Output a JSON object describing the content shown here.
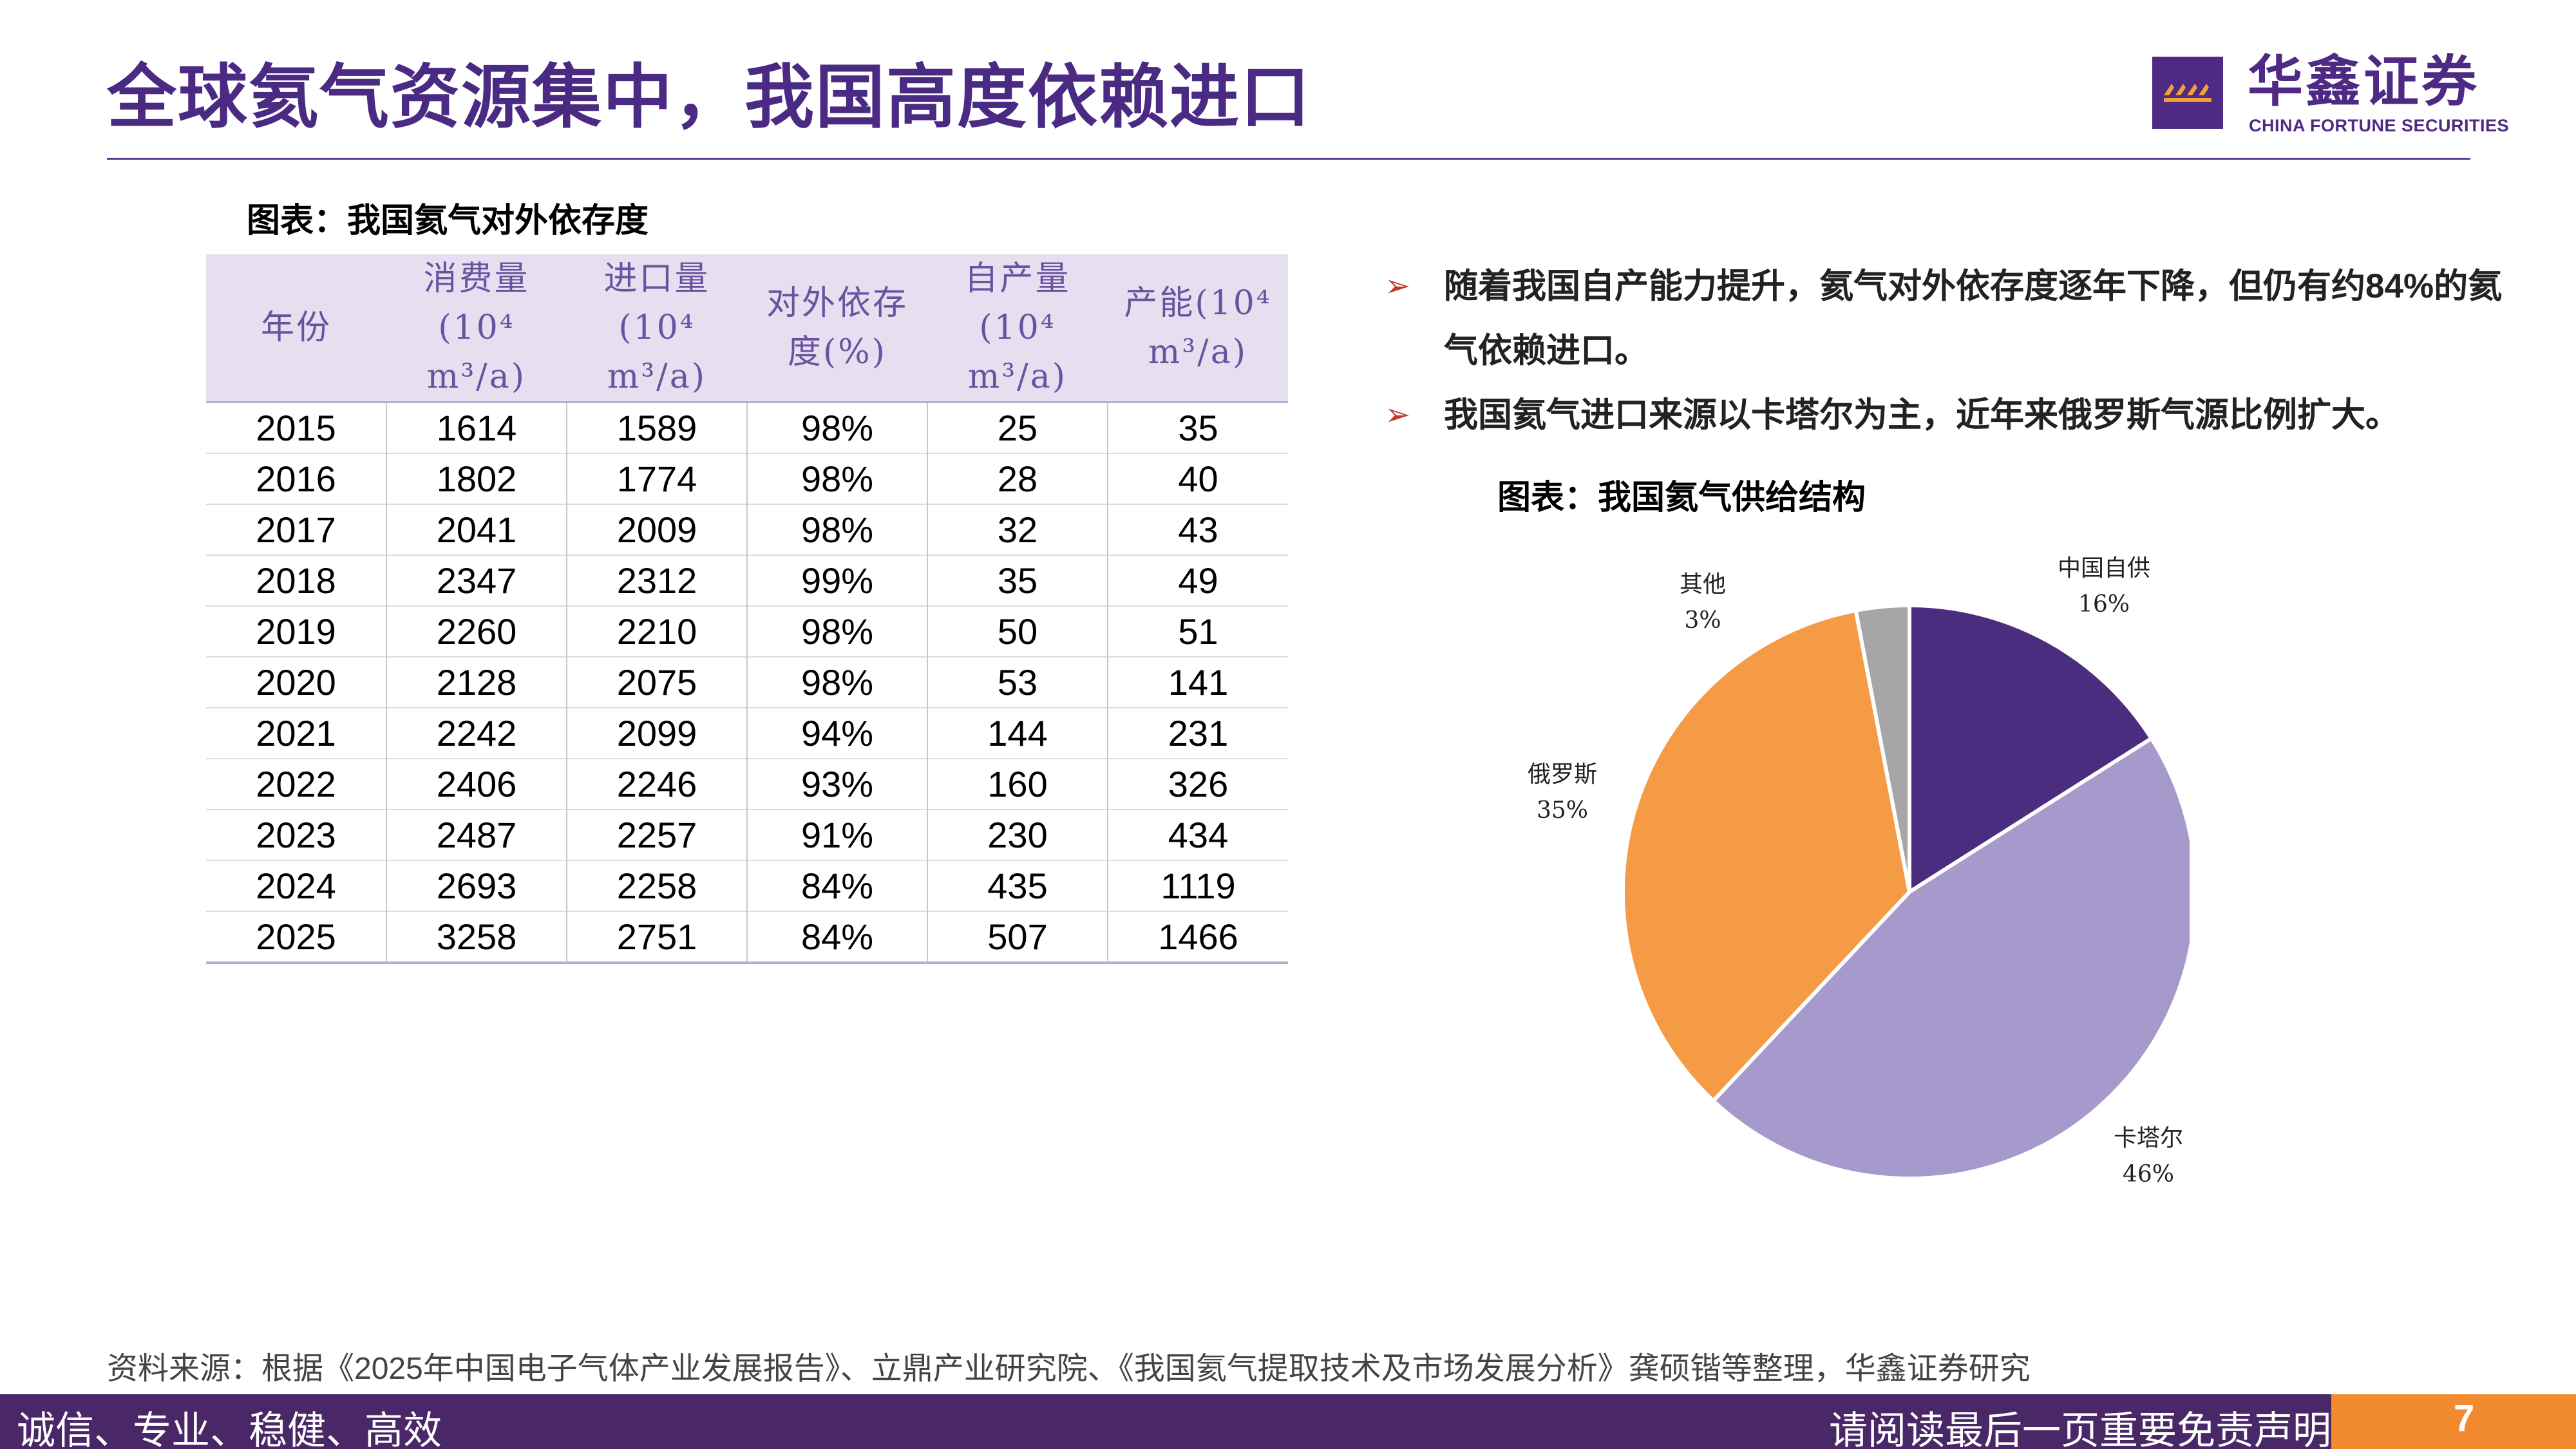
{
  "header": {
    "title": "全球氦气资源集中，我国高度依赖进口",
    "logo_cn": "华鑫证券",
    "logo_en": "CHINA FORTUNE SECURITIES",
    "brand_color": "#4e2a84"
  },
  "table": {
    "caption": "图表：我国氦气对外依存度",
    "headers": [
      "年份",
      "消费量(10⁴ m³/a)",
      "进口量(10⁴ m³/a)",
      "对外依存度(%)",
      "自产量(10⁴ m³/a)",
      "产能(10⁴ m³/a)"
    ],
    "rows": [
      [
        "2015",
        "1614",
        "1589",
        "98%",
        "25",
        "35"
      ],
      [
        "2016",
        "1802",
        "1774",
        "98%",
        "28",
        "40"
      ],
      [
        "2017",
        "2041",
        "2009",
        "98%",
        "32",
        "43"
      ],
      [
        "2018",
        "2347",
        "2312",
        "99%",
        "35",
        "49"
      ],
      [
        "2019",
        "2260",
        "2210",
        "98%",
        "50",
        "51"
      ],
      [
        "2020",
        "2128",
        "2075",
        "98%",
        "53",
        "141"
      ],
      [
        "2021",
        "2242",
        "2099",
        "94%",
        "144",
        "231"
      ],
      [
        "2022",
        "2406",
        "2246",
        "93%",
        "160",
        "326"
      ],
      [
        "2023",
        "2487",
        "2257",
        "91%",
        "230",
        "434"
      ],
      [
        "2024",
        "2693",
        "2258",
        "84%",
        "435",
        "1119"
      ],
      [
        "2025",
        "3258",
        "2751",
        "84%",
        "507",
        "1466"
      ]
    ]
  },
  "bullets": [
    "随着我国自产能力提升，氦气对外依存度逐年下降，但仍有约84%的氦气依赖进口。",
    "我国氦气进口来源以卡塔尔为主，近年来俄罗斯气源比例扩大。"
  ],
  "chart_data": {
    "type": "pie",
    "title": "图表：我国氦气供给结构",
    "slices": [
      {
        "label": "中国自供",
        "value": 16,
        "display": "16%",
        "color": "#4b2d7f"
      },
      {
        "label": "卡塔尔",
        "value": 46,
        "display": "46%",
        "color": "#a59acb"
      },
      {
        "label": "俄罗斯",
        "value": 35,
        "display": "35%",
        "color": "#f59a45"
      },
      {
        "label": "其他",
        "value": 3,
        "display": "3%",
        "color": "#a6a6a6"
      }
    ]
  },
  "source": "资料来源：根据《2025年中国电子气体产业发展报告》、立鼎产业研究院、《我国氦气提取技术及市场发展分析》龚硕锴等整理，华鑫证券研究",
  "footer": {
    "left": "诚信、专业、稳健、高效",
    "right": "请阅读最后一页重要免责声明",
    "page": "7"
  }
}
